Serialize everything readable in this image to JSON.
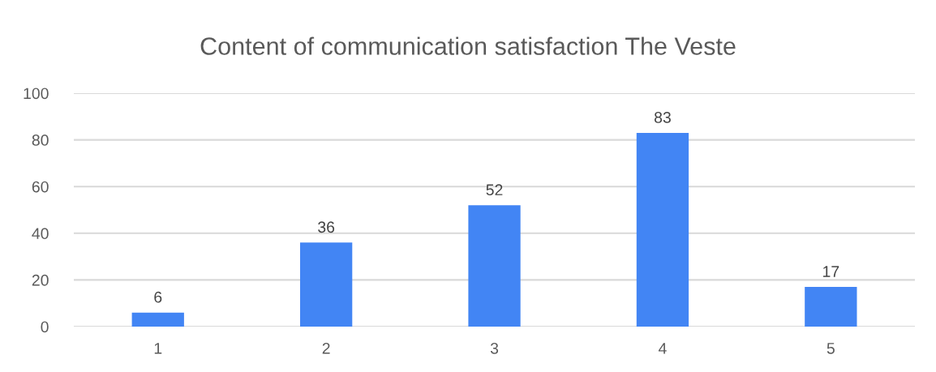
{
  "chart_data": {
    "type": "bar",
    "title": "Content of communication satisfaction The Veste",
    "categories": [
      "1",
      "2",
      "3",
      "4",
      "5"
    ],
    "values": [
      6,
      36,
      52,
      83,
      17
    ],
    "color": "#4285f4",
    "ylim": [
      0,
      100
    ],
    "yticks": [
      0,
      20,
      40,
      60,
      80,
      100
    ],
    "grid": "y",
    "data_labels": true
  }
}
